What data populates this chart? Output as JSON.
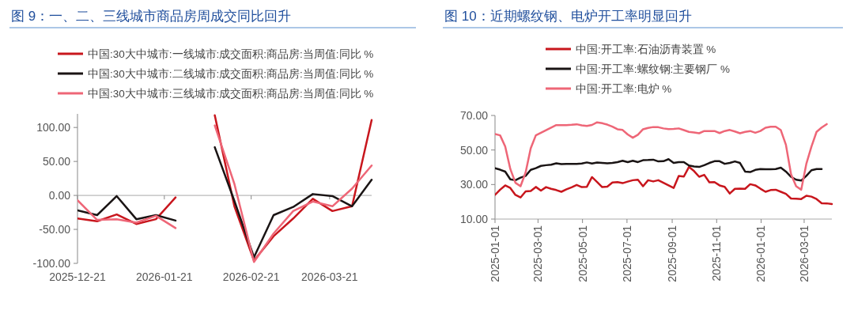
{
  "chart_data": [
    {
      "type": "line",
      "title": "图 9：一、二、三线城市商品房周成交同比回升",
      "x": [
        "2025-12-21",
        "2025-12-28",
        "2026-01-04",
        "2026-01-11",
        "2026-01-18",
        "2026-01-25",
        "2026-02-01",
        "2026-02-08",
        "2026-02-15",
        "2026-02-22",
        "2026-03-01",
        "2026-03-08",
        "2026-03-15",
        "2026-03-22",
        "2026-03-29",
        "2026-04-05"
      ],
      "series": [
        {
          "name": "中国:30大中城市:一线城市:成交面积:商品房:当周值:同比 %",
          "color": "#c8161d",
          "values": [
            -34,
            -38,
            -28,
            -42,
            -35,
            -3,
            null,
            118,
            -16,
            -96,
            -60,
            -34,
            -5,
            -23,
            -16,
            111
          ]
        },
        {
          "name": "中国:30大中城市:二线城市:成交面积:商品房:当周值:同比 %",
          "color": "#1a1414",
          "values": [
            -22,
            -29,
            -1,
            -35,
            -29,
            -37,
            null,
            71,
            -8,
            -91,
            -29,
            -17,
            2,
            -1,
            -16,
            23
          ]
        },
        {
          "name": "中国:30大中城市:三线城市:成交面积:商品房:当周值:同比 %",
          "color": "#ee6677",
          "values": [
            -7,
            -36,
            -35,
            -40,
            -30,
            -48,
            null,
            103,
            17,
            -98,
            -56,
            -23,
            -9,
            -16,
            10,
            44
          ]
        }
      ],
      "xlim": [
        "2025-12-21",
        "2026-04-05"
      ],
      "xticks": [
        "2025-12-21",
        "2026-01-21",
        "2026-02-21",
        "2026-03-21"
      ],
      "ylim": [
        -100,
        120
      ],
      "yticks": [
        {
          "value": -100,
          "label": "-100.00"
        },
        {
          "value": -50,
          "label": "-50.00"
        },
        {
          "value": 0,
          "label": "0.00"
        },
        {
          "value": 50,
          "label": "50.00"
        },
        {
          "value": 100,
          "label": "100.00"
        }
      ],
      "ref_lines": [
        {
          "axis": "y",
          "value": 0,
          "color": "#aaaaaa"
        }
      ],
      "legend": "top",
      "grid": false
    },
    {
      "type": "line",
      "title": "图 10：近期螺纹钢、电炉开工率明显回升",
      "x": [
        "2025-01-01",
        "2025-01-08",
        "2025-01-15",
        "2025-01-22",
        "2025-01-29",
        "2025-02-05",
        "2025-02-12",
        "2025-02-19",
        "2025-02-26",
        "2025-03-05",
        "2025-03-12",
        "2025-03-19",
        "2025-03-26",
        "2025-04-02",
        "2025-04-09",
        "2025-04-16",
        "2025-04-23",
        "2025-04-30",
        "2025-05-07",
        "2025-05-14",
        "2025-05-21",
        "2025-05-28",
        "2025-06-04",
        "2025-06-11",
        "2025-06-18",
        "2025-06-25",
        "2025-07-02",
        "2025-07-09",
        "2025-07-16",
        "2025-07-23",
        "2025-07-30",
        "2025-08-06",
        "2025-08-13",
        "2025-08-20",
        "2025-08-27",
        "2025-09-03",
        "2025-09-10",
        "2025-09-17",
        "2025-09-24",
        "2025-10-01",
        "2025-10-08",
        "2025-10-15",
        "2025-10-22",
        "2025-10-29",
        "2025-11-05",
        "2025-11-12",
        "2025-11-19",
        "2025-11-26",
        "2025-12-03",
        "2025-12-10",
        "2025-12-17",
        "2025-12-24",
        "2025-12-31",
        "2026-01-07",
        "2026-01-14",
        "2026-01-21",
        "2026-01-28",
        "2026-02-04",
        "2026-02-11",
        "2026-02-18",
        "2026-02-25",
        "2026-03-04",
        "2026-03-11",
        "2026-03-18",
        "2026-03-25",
        "2026-04-01",
        "2026-04-08"
      ],
      "series": [
        {
          "name": "中国:开工率:石油沥青装置 %",
          "color": "#c8161d",
          "values": [
            24,
            27,
            29.5,
            28,
            24,
            22.5,
            26,
            26.3,
            28.6,
            26.5,
            28.5,
            27.5,
            26.8,
            25.8,
            27.2,
            28.4,
            29.8,
            28.5,
            28.7,
            34.3,
            31.5,
            28.5,
            28.8,
            31.2,
            31.4,
            30.8,
            31.7,
            32.5,
            32.8,
            29,
            32.5,
            31.8,
            32.5,
            31,
            29.5,
            28,
            35,
            34.6,
            40.2,
            37.8,
            34.5,
            35.6,
            31.3,
            31.4,
            29.5,
            28.7,
            24.8,
            27.5,
            27.6,
            27.5,
            30.2,
            29.5,
            27.6,
            25.8,
            26.8,
            27,
            25.8,
            24.6,
            21.9,
            21.8,
            21.6,
            23.5,
            23,
            21.6,
            19.2,
            19.1,
            18.7
          ]
        },
        {
          "name": "中国:开工率:螺纹钢:主要钢厂 %",
          "color": "#1a1414",
          "values": [
            39.5,
            38.6,
            37.5,
            33,
            32.5,
            34,
            35,
            38.5,
            39.5,
            40.8,
            41.2,
            41.5,
            42.3,
            41.8,
            42,
            42,
            42,
            42.2,
            42.8,
            42.2,
            42.7,
            42.5,
            42.3,
            42.5,
            43,
            43.8,
            43,
            43.8,
            43,
            44.1,
            44.2,
            44.4,
            43.4,
            43.5,
            44.7,
            42.5,
            43,
            43,
            41,
            40.5,
            40.2,
            41.2,
            42.5,
            43.5,
            43.5,
            42,
            42.5,
            43.4,
            42.5,
            37.5,
            37.2,
            38.5,
            39,
            38.8,
            38.8,
            39,
            39.8,
            37.5,
            34.5,
            32.8,
            32.3,
            35,
            38.3,
            39,
            39,
            null,
            null
          ]
        },
        {
          "name": "中国:开工率:电炉 %",
          "color": "#ee6677",
          "values": [
            59.2,
            58.5,
            52,
            39,
            31,
            29,
            37,
            51,
            58.5,
            60,
            61.5,
            63,
            64.4,
            64.4,
            64.4,
            64.6,
            64.9,
            64.3,
            63.9,
            64.5,
            66,
            65.5,
            64.7,
            63.5,
            62,
            61.6,
            59,
            57.1,
            58.8,
            62,
            62.8,
            63.3,
            63.2,
            62.5,
            62.1,
            62.2,
            62.5,
            61.5,
            60.5,
            60.2,
            59.7,
            61,
            61,
            61,
            59.8,
            61,
            61.6,
            60.7,
            59.7,
            60.5,
            61,
            60,
            61,
            62.9,
            63.5,
            63.5,
            61.5,
            53,
            36,
            29,
            27,
            42,
            52,
            60.5,
            63,
            65,
            null
          ]
        }
      ],
      "xlim": [
        "2025-01-01",
        "2026-04-08"
      ],
      "xticks": [
        "2025-01-01",
        "2025-03-01",
        "2025-05-01",
        "2025-07-01",
        "2025-09-01",
        "2025-11-01",
        "2026-01-01",
        "2026-03-01"
      ],
      "ylim": [
        10,
        70
      ],
      "yticks": [
        {
          "value": 10,
          "label": "10.00"
        },
        {
          "value": 30,
          "label": "30.00"
        },
        {
          "value": 50,
          "label": "50.00"
        },
        {
          "value": 70,
          "label": "70.00"
        }
      ],
      "legend": "top",
      "grid": false
    }
  ]
}
